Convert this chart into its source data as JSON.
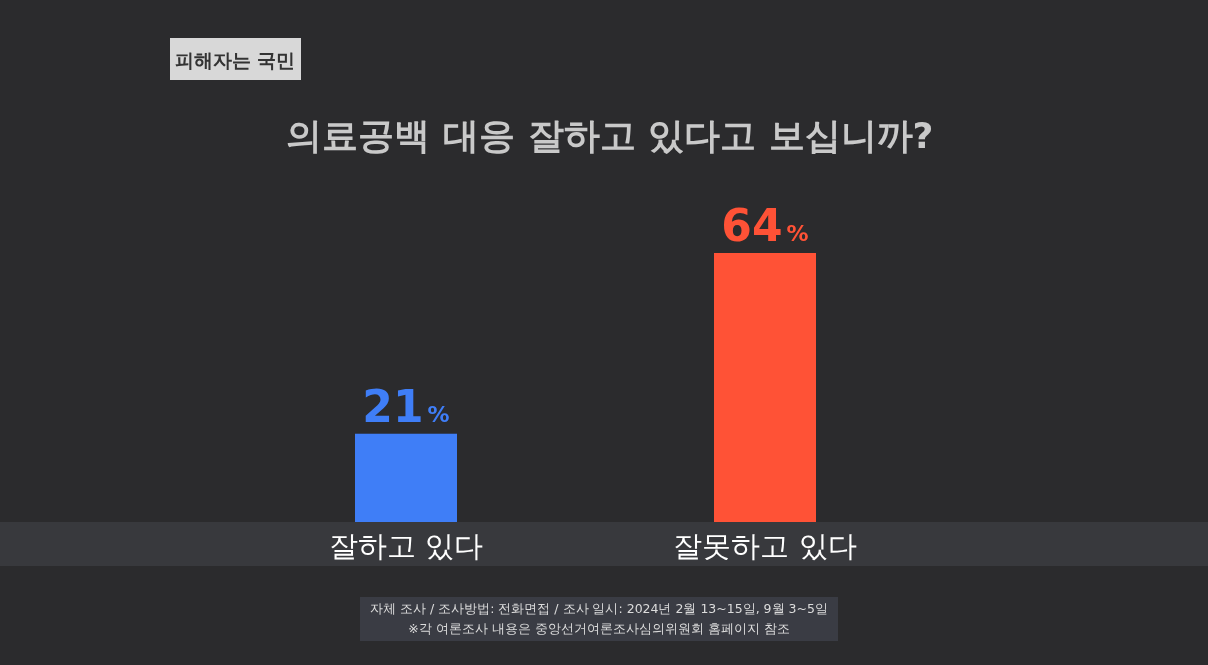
{
  "chart_data": {
    "type": "bar",
    "title": "의료공백 대응 잘하고 있다고 보십니까?",
    "categories": [
      "잘하고 있다",
      "잘못하고 있다"
    ],
    "values": [
      21,
      64
    ],
    "colors": [
      "#3f7ef7",
      "#ff5236"
    ],
    "value_labels": [
      "21%",
      "64%"
    ],
    "annotations": [
      "피해자는 국민",
      "자체 조사 / 조사방법: 전화면접 / 조사 일시: 2024년 2월 13~15일, 9월 3~5일",
      "※각 여론조사 내용은 중앙선거여론조사심의위원회 홈페이지 참조"
    ]
  }
}
